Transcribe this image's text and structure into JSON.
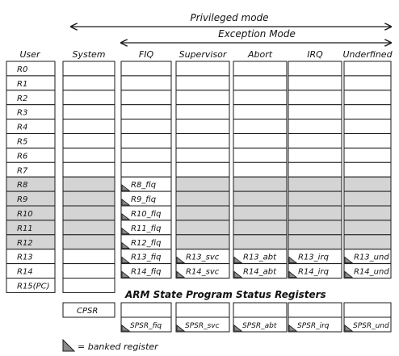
{
  "header": {
    "privileged_mode": "Privileged mode",
    "exception_mode": "Exception Mode"
  },
  "columns": [
    "User",
    "System",
    "FIQ",
    "Supervisor",
    "Abort",
    "IRQ",
    "Underfined"
  ],
  "registers": [
    "R0",
    "R1",
    "R2",
    "R3",
    "R4",
    "R5",
    "R6",
    "R7",
    "R8",
    "R9",
    "R10",
    "R11",
    "R12",
    "R13",
    "R14",
    "R15(PC)"
  ],
  "banked": {
    "fiq": [
      "R8_fiq",
      "R9_fiq",
      "R10_fiq",
      "R11_fiq",
      "R12_fiq",
      "R13_fiq",
      "R14_fiq"
    ],
    "svc": [
      "R13_svc",
      "R14_svc"
    ],
    "abt": [
      "R13_abt",
      "R14_abt"
    ],
    "irq": [
      "R13_irq",
      "R14_irq"
    ],
    "und": [
      "R13_und",
      "R14_und"
    ]
  },
  "status": {
    "title": "ARM State Program Status Registers",
    "cpsr": "CPSR",
    "spsr": [
      "SPSR_fiq",
      "SPSR_svc",
      "SPSR_abt",
      "SPSR_irq",
      "SPSR_und"
    ]
  },
  "legend": {
    "text": "= banked register"
  },
  "colors": {
    "shade": "#d4d4d4",
    "banked_marker": "#8a8a8a",
    "line": "#1a1a1a"
  }
}
